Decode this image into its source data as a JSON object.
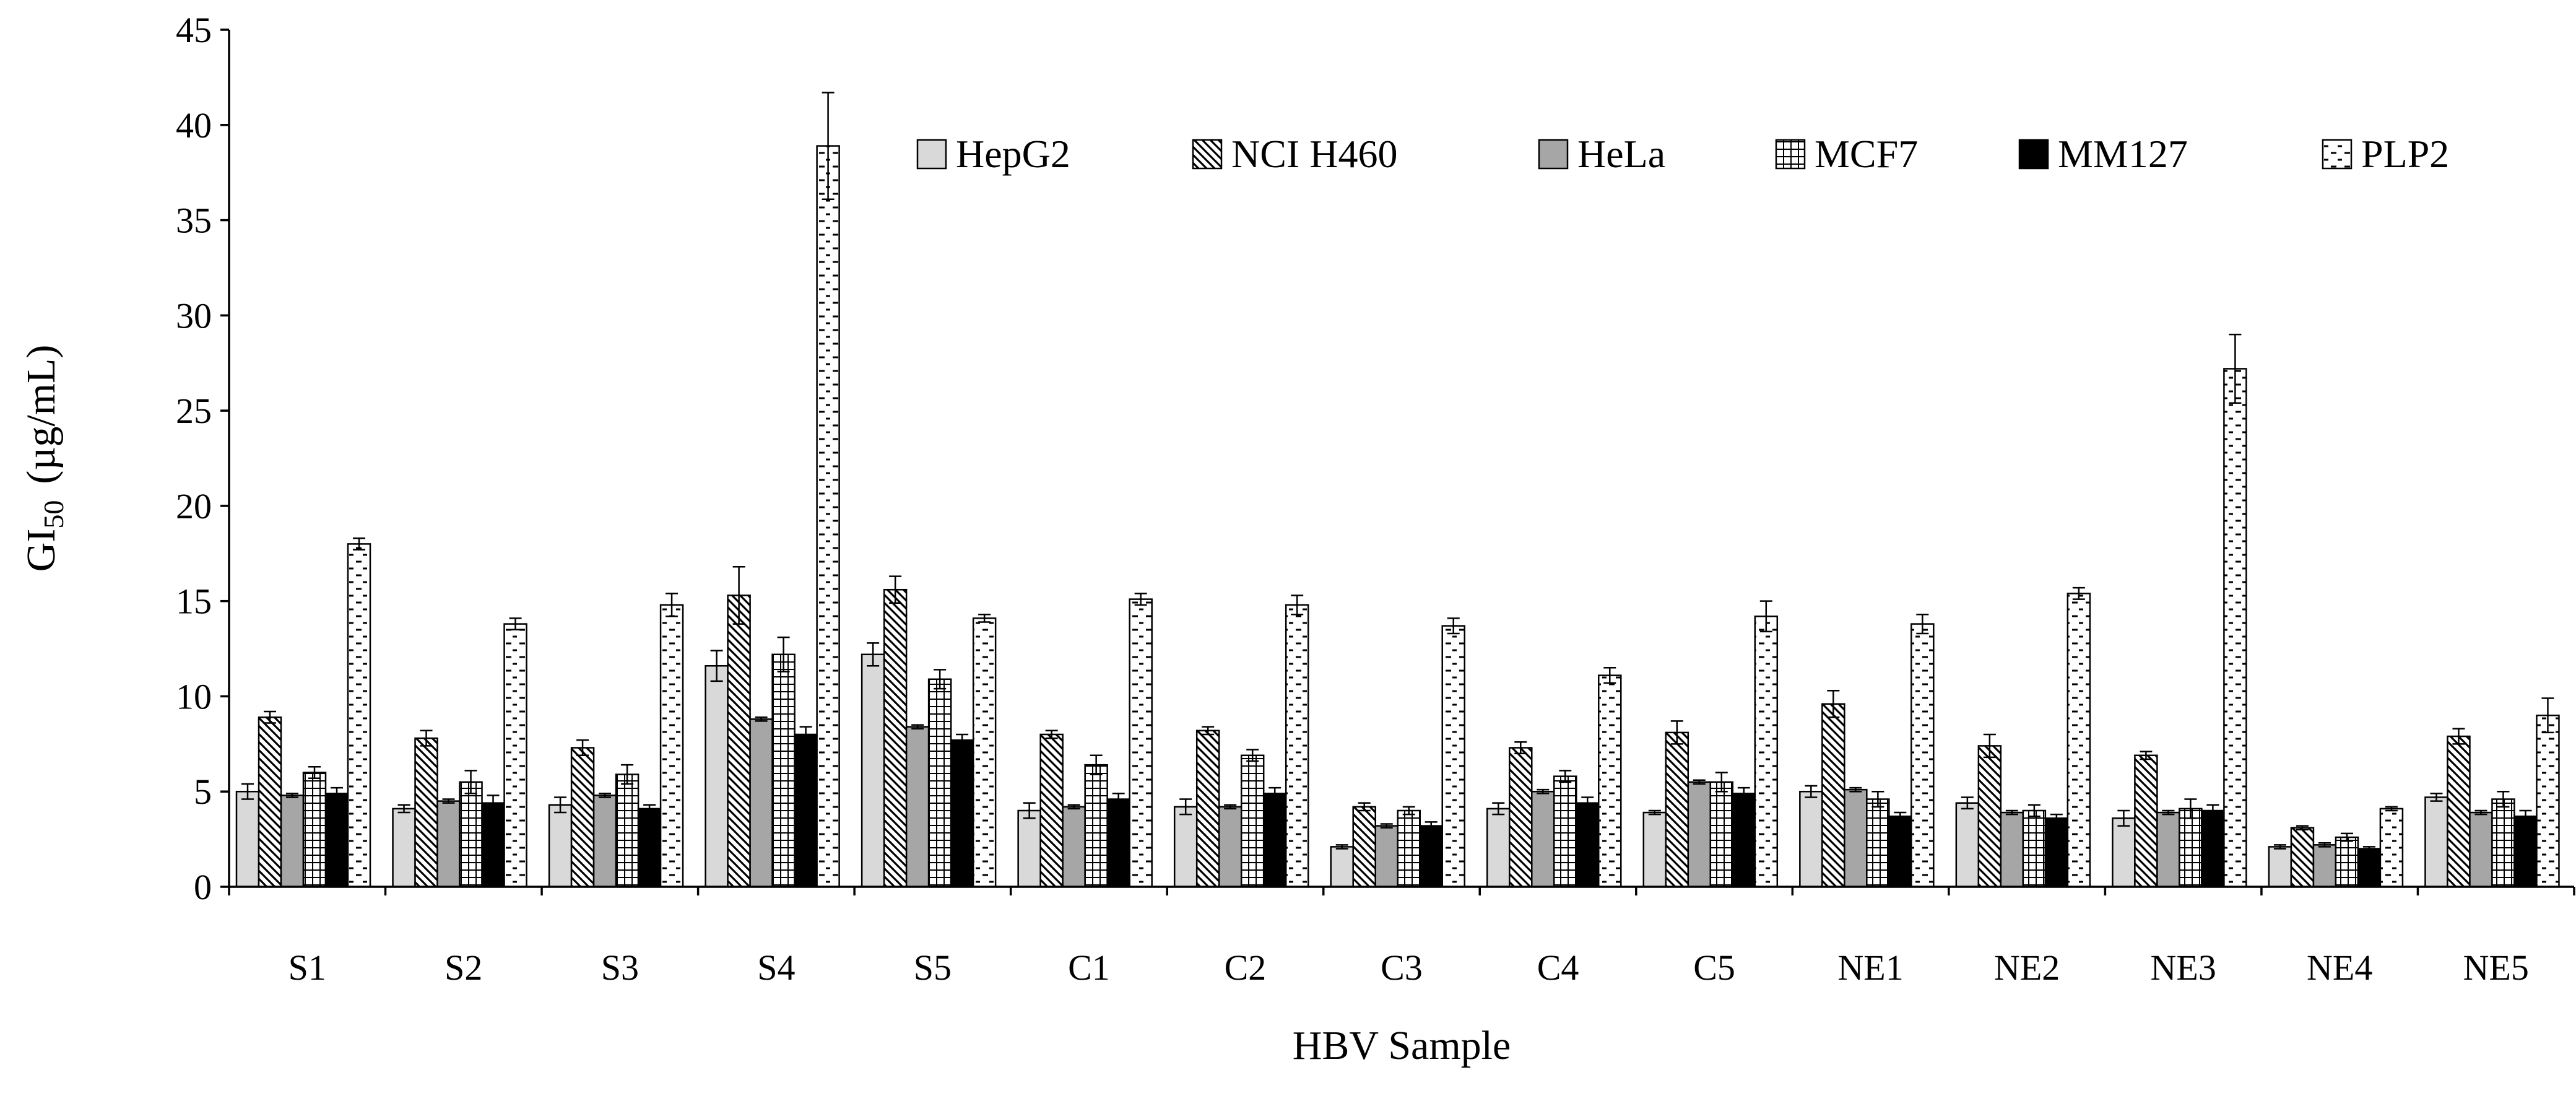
{
  "chart_data": {
    "type": "bar",
    "title": "",
    "xlabel": "HBV Sample",
    "ylabel_main": "GI",
    "ylabel_sub": "50",
    "ylabel_unit": "(µg/mL)",
    "ylim": [
      0,
      45
    ],
    "ytick_step": 5,
    "yticks": [
      0,
      5,
      10,
      15,
      20,
      25,
      30,
      35,
      40,
      45
    ],
    "grid": false,
    "legend_position": "top-right",
    "categories": [
      "S1",
      "S2",
      "S3",
      "S4",
      "S5",
      "C1",
      "C2",
      "C3",
      "C4",
      "C5",
      "NE1",
      "NE2",
      "NE3",
      "NE4",
      "NE5"
    ],
    "series": [
      {
        "name": "HepG2",
        "pattern": "solid-light-gray",
        "values": [
          5.0,
          4.1,
          4.3,
          11.6,
          12.2,
          4.0,
          4.2,
          2.1,
          4.1,
          3.9,
          5.0,
          4.4,
          3.6,
          2.1,
          4.7
        ],
        "errors": [
          0.4,
          0.2,
          0.4,
          0.8,
          0.6,
          0.4,
          0.4,
          0.1,
          0.3,
          0.1,
          0.3,
          0.3,
          0.4,
          0.1,
          0.2
        ]
      },
      {
        "name": "NCI H460",
        "pattern": "diagonal-hatch",
        "values": [
          8.9,
          7.8,
          7.3,
          15.3,
          15.6,
          8.0,
          8.2,
          4.2,
          7.3,
          8.1,
          9.6,
          7.4,
          6.9,
          3.1,
          7.9
        ],
        "errors": [
          0.3,
          0.4,
          0.4,
          1.5,
          0.7,
          0.2,
          0.2,
          0.2,
          0.3,
          0.6,
          0.7,
          0.6,
          0.2,
          0.1,
          0.4
        ]
      },
      {
        "name": "HeLa",
        "pattern": "solid-dark-gray",
        "values": [
          4.8,
          4.5,
          4.8,
          8.8,
          8.4,
          4.2,
          4.2,
          3.2,
          5.0,
          5.5,
          5.1,
          3.9,
          3.9,
          2.2,
          3.9
        ],
        "errors": [
          0.1,
          0.1,
          0.1,
          0.1,
          0.1,
          0.1,
          0.1,
          0.1,
          0.1,
          0.1,
          0.1,
          0.1,
          0.1,
          0.1,
          0.1
        ]
      },
      {
        "name": "MCF7",
        "pattern": "grid",
        "values": [
          6.0,
          5.5,
          5.9,
          12.2,
          10.9,
          6.4,
          6.9,
          4.0,
          5.8,
          5.5,
          4.6,
          4.0,
          4.1,
          2.6,
          4.6
        ],
        "errors": [
          0.3,
          0.6,
          0.5,
          0.9,
          0.5,
          0.5,
          0.3,
          0.2,
          0.3,
          0.5,
          0.4,
          0.3,
          0.5,
          0.2,
          0.4
        ]
      },
      {
        "name": "MM127",
        "pattern": "solid-black",
        "values": [
          4.9,
          4.4,
          4.1,
          8.0,
          7.7,
          4.6,
          4.9,
          3.2,
          4.4,
          4.9,
          3.7,
          3.6,
          4.0,
          2.0,
          3.7
        ],
        "errors": [
          0.3,
          0.4,
          0.2,
          0.4,
          0.3,
          0.3,
          0.3,
          0.2,
          0.3,
          0.3,
          0.2,
          0.2,
          0.3,
          0.1,
          0.3
        ]
      },
      {
        "name": "PLP2",
        "pattern": "dashes",
        "values": [
          18.0,
          13.8,
          14.8,
          38.9,
          14.1,
          15.1,
          14.8,
          13.7,
          11.1,
          14.2,
          13.8,
          15.4,
          27.2,
          4.1,
          9.0
        ],
        "errors": [
          0.3,
          0.3,
          0.6,
          2.8,
          0.2,
          0.3,
          0.5,
          0.4,
          0.4,
          0.8,
          0.5,
          0.3,
          1.8,
          0.1,
          0.9
        ]
      }
    ],
    "colors": {
      "light_gray": "#d9d9d9",
      "dark_gray": "#a6a6a6",
      "black": "#000000",
      "white": "#ffffff",
      "axis": "#000000"
    }
  }
}
